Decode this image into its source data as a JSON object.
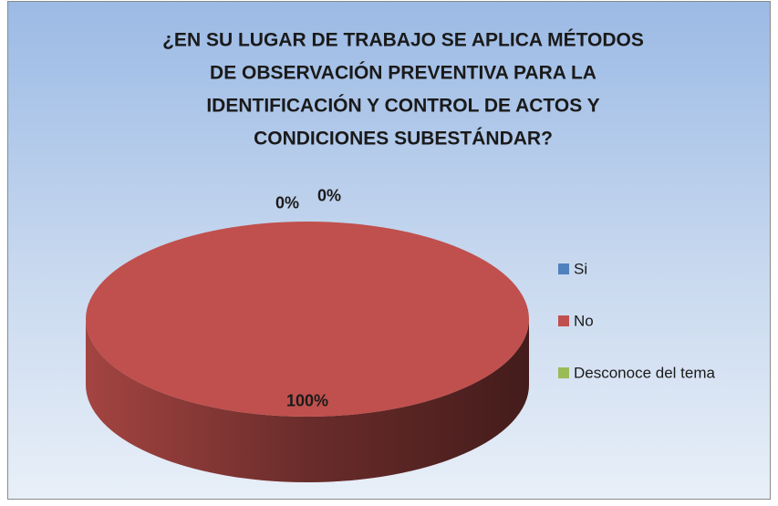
{
  "chart_data": {
    "type": "pie3d",
    "title": [
      "¿EN SU LUGAR DE TRABAJO SE APLICA MÉTODOS",
      "DE OBSERVACIÓN PREVENTIVA PARA LA",
      "IDENTIFICACIÓN Y CONTROL DE ACTOS Y",
      "CONDICIONES SUBESTÁNDAR?"
    ],
    "categories": [
      "Si",
      "No",
      "Desconoce del tema"
    ],
    "values": [
      0,
      100,
      0
    ],
    "value_labels": [
      "0%",
      "100%",
      "0%"
    ],
    "colors": [
      "#4f81bd",
      "#c0504d",
      "#9bbb59"
    ],
    "legend": "right"
  }
}
